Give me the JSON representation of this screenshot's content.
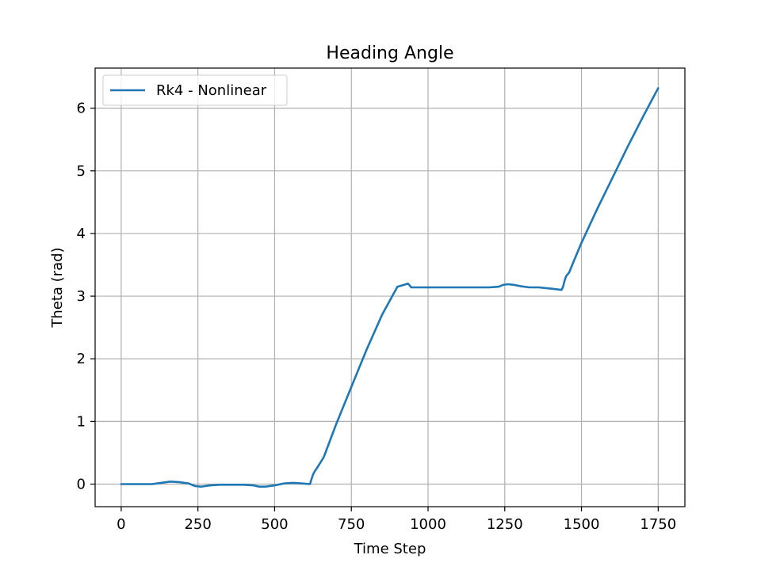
{
  "chart_data": {
    "type": "line",
    "title": "Heading Angle",
    "xlabel": "Time Step",
    "ylabel": "Theta (rad)",
    "xlim": [
      -85,
      1837
    ],
    "ylim": [
      -0.36,
      6.64
    ],
    "x_ticks": [
      0,
      250,
      500,
      750,
      1000,
      1250,
      1500,
      1750
    ],
    "y_ticks": [
      0,
      1,
      2,
      3,
      4,
      5,
      6
    ],
    "grid": true,
    "legend_position": "top-left",
    "colors": {
      "series": "#1f77b4",
      "grid": "#b0b0b0",
      "axes": "#000000"
    },
    "series": [
      {
        "name": "Rk4 - Nonlinear",
        "x": [
          0,
          100,
          130,
          160,
          190,
          220,
          240,
          260,
          290,
          320,
          360,
          400,
          430,
          450,
          470,
          500,
          530,
          560,
          590,
          615,
          625,
          630,
          640,
          650,
          660,
          700,
          750,
          800,
          850,
          900,
          935,
          940,
          945,
          950,
          1000,
          1100,
          1200,
          1230,
          1245,
          1260,
          1280,
          1300,
          1330,
          1360,
          1400,
          1420,
          1435,
          1440,
          1445,
          1450,
          1460,
          1470,
          1500,
          1550,
          1600,
          1650,
          1700,
          1750
        ],
        "y": [
          0,
          0,
          0.02,
          0.04,
          0.03,
          0.01,
          -0.03,
          -0.04,
          -0.02,
          -0.01,
          -0.01,
          -0.01,
          -0.02,
          -0.04,
          -0.04,
          -0.02,
          0.01,
          0.02,
          0.01,
          0,
          0.15,
          0.2,
          0.27,
          0.35,
          0.43,
          0.95,
          1.55,
          2.15,
          2.7,
          3.15,
          3.2,
          3.17,
          3.14,
          3.14,
          3.14,
          3.14,
          3.14,
          3.15,
          3.18,
          3.19,
          3.18,
          3.16,
          3.14,
          3.14,
          3.12,
          3.11,
          3.1,
          3.15,
          3.25,
          3.32,
          3.38,
          3.5,
          3.85,
          4.38,
          4.88,
          5.38,
          5.86,
          6.32
        ]
      }
    ]
  }
}
